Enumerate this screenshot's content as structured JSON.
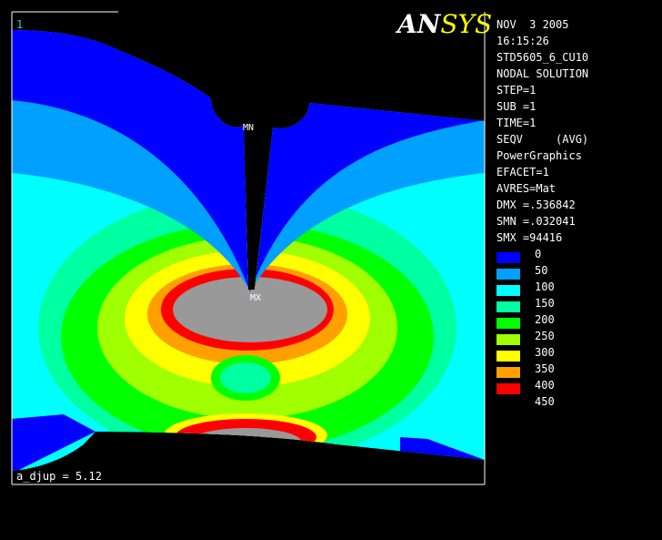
{
  "window_number": "1",
  "logo": {
    "part1": "AN",
    "part2": "SYS"
  },
  "info": [
    "NOV  3 2005",
    "16:15:26",
    "STD5605_6_CU10",
    "NODAL SOLUTION",
    "STEP=1",
    "SUB =1",
    "TIME=1",
    "SEQV     (AVG)",
    "PowerGraphics",
    "EFACET=1",
    "AVRES=Mat",
    "DMX =.536842",
    "SMN =.032041",
    "SMX =94416"
  ],
  "legend": {
    "colors": [
      "#0000ff",
      "#00a0ff",
      "#00ffff",
      "#00ffa0",
      "#00ff00",
      "#a0ff00",
      "#ffff00",
      "#ffa000",
      "#ff0000"
    ],
    "labels": [
      0,
      50,
      100,
      150,
      200,
      250,
      300,
      350,
      400,
      450
    ]
  },
  "markers": {
    "min": "MN",
    "max": "MX"
  },
  "footer": "a_djup = 5.12"
}
